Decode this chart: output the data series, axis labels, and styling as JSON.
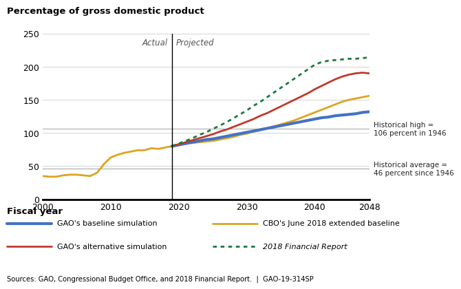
{
  "title": "Percentage of gross domestic product",
  "xlabel": "Fiscal year",
  "xlim": [
    2000,
    2048
  ],
  "ylim": [
    0,
    250
  ],
  "yticks": [
    0,
    50,
    100,
    150,
    200,
    250
  ],
  "xticks": [
    2000,
    2010,
    2020,
    2030,
    2040,
    2048
  ],
  "vertical_line_x": 2019,
  "actual_label": "Actual",
  "projected_label": "Projected",
  "historical_high": 106,
  "historical_high_label": "Historical high =\n106 percent in 1946",
  "historical_avg": 46,
  "historical_avg_label": "Historical average =\n46 percent since 1946",
  "sources": "Sources: GAO, Congressional Budget Office, and 2018 Financial Report.  |  GAO-19-314SP",
  "cbo_historical_x": [
    2000,
    2001,
    2002,
    2003,
    2004,
    2005,
    2006,
    2007,
    2008,
    2009,
    2010,
    2011,
    2012,
    2013,
    2014,
    2015,
    2016,
    2017,
    2018,
    2019
  ],
  "cbo_historical_y": [
    35,
    34,
    34,
    36,
    37,
    37,
    36,
    35,
    40,
    53,
    63,
    67,
    70,
    72,
    74,
    74,
    77,
    76,
    78,
    80
  ],
  "cbo_projected_x": [
    2019,
    2020,
    2021,
    2022,
    2023,
    2024,
    2025,
    2026,
    2027,
    2028,
    2029,
    2030,
    2031,
    2032,
    2033,
    2034,
    2035,
    2036,
    2037,
    2038,
    2039,
    2040,
    2041,
    2042,
    2043,
    2044,
    2045,
    2046,
    2047,
    2048
  ],
  "cbo_projected_y": [
    80,
    82,
    84,
    85,
    86,
    87,
    88,
    90,
    92,
    94,
    97,
    99,
    102,
    104,
    107,
    110,
    113,
    116,
    119,
    123,
    127,
    131,
    135,
    139,
    143,
    147,
    150,
    152,
    154,
    156
  ],
  "gao_baseline_x": [
    2019,
    2020,
    2021,
    2022,
    2023,
    2024,
    2025,
    2026,
    2027,
    2028,
    2029,
    2030,
    2031,
    2032,
    2033,
    2034,
    2035,
    2036,
    2037,
    2038,
    2039,
    2040,
    2041,
    2042,
    2043,
    2044,
    2045,
    2046,
    2047,
    2048
  ],
  "gao_baseline_y": [
    80,
    82,
    84,
    86,
    88,
    90,
    91,
    93,
    95,
    97,
    99,
    101,
    103,
    105,
    107,
    109,
    111,
    113,
    115,
    117,
    119,
    121,
    123,
    124,
    126,
    127,
    128,
    129,
    131,
    132
  ],
  "gao_alternative_x": [
    2019,
    2020,
    2021,
    2022,
    2023,
    2024,
    2025,
    2026,
    2027,
    2028,
    2029,
    2030,
    2031,
    2032,
    2033,
    2034,
    2035,
    2036,
    2037,
    2038,
    2039,
    2040,
    2041,
    2042,
    2043,
    2044,
    2045,
    2046,
    2047,
    2048
  ],
  "gao_alternative_y": [
    80,
    83,
    86,
    89,
    92,
    95,
    98,
    102,
    105,
    109,
    113,
    117,
    121,
    126,
    130,
    135,
    140,
    145,
    150,
    155,
    160,
    166,
    171,
    176,
    181,
    185,
    188,
    190,
    191,
    190
  ],
  "financial_report_x": [
    2019,
    2020,
    2021,
    2022,
    2023,
    2024,
    2025,
    2026,
    2027,
    2028,
    2029,
    2030,
    2031,
    2032,
    2033,
    2034,
    2035,
    2036,
    2037,
    2038,
    2039,
    2040,
    2041,
    2042,
    2043,
    2044,
    2045,
    2046,
    2047,
    2048
  ],
  "financial_report_y": [
    80,
    84,
    88,
    92,
    97,
    101,
    106,
    111,
    116,
    122,
    128,
    134,
    141,
    147,
    154,
    161,
    168,
    175,
    182,
    189,
    196,
    203,
    207,
    209,
    210,
    211,
    212,
    212,
    213,
    214
  ],
  "legend_items": [
    {
      "label": "GAO's baseline simulation",
      "color": "#4472C4",
      "style": "solid",
      "lw": 3.0
    },
    {
      "label": "CBO's June 2018 extended baseline",
      "color": "#DAA520",
      "style": "solid",
      "lw": 2.0
    },
    {
      "label": "GAO's alternative simulation",
      "color": "#C0392B",
      "style": "solid",
      "lw": 2.0
    },
    {
      "label": "2018 Financial Report",
      "color": "#1A7A3C",
      "style": "dotted",
      "lw": 2.0
    }
  ]
}
